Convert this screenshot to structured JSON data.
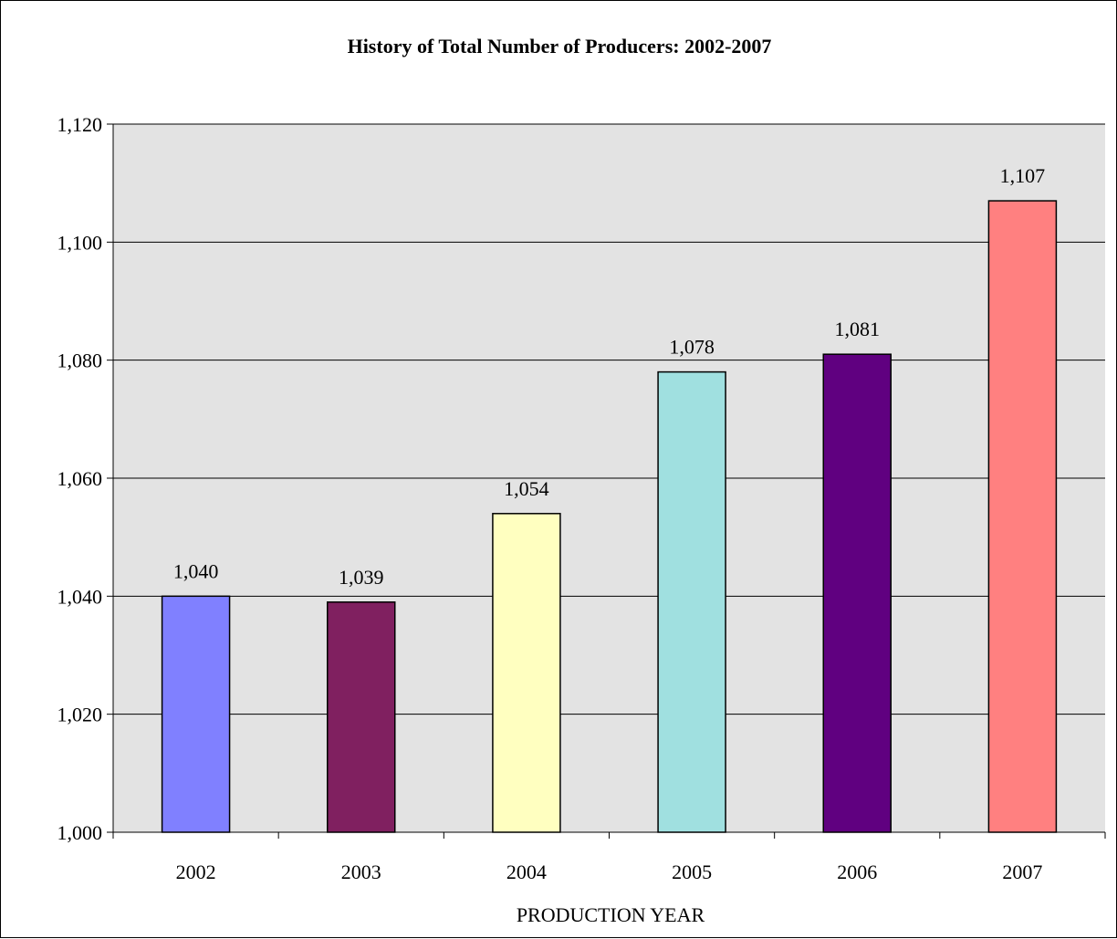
{
  "chart_data": {
    "type": "bar",
    "title": "History of Total Number of Producers: 2002-2007",
    "xlabel": "PRODUCTION YEAR",
    "ylabel": "",
    "categories": [
      "2002",
      "2003",
      "2004",
      "2005",
      "2006",
      "2007"
    ],
    "values": [
      1040,
      1039,
      1054,
      1078,
      1081,
      1107
    ],
    "data_labels": [
      "1,040",
      "1,039",
      "1,054",
      "1,078",
      "1,081",
      "1,107"
    ],
    "bar_colors": [
      "#8080ff",
      "#802060",
      "#ffffc0",
      "#a0e0e0",
      "#600080",
      "#ff8080"
    ],
    "ylim": [
      1000,
      1120
    ],
    "yticks": [
      1000,
      1020,
      1040,
      1060,
      1080,
      1100,
      1120
    ],
    "ytick_labels": [
      "1,000",
      "1,020",
      "1,040",
      "1,060",
      "1,080",
      "1,100",
      "1,120"
    ],
    "grid": true,
    "plot_background": "#e3e3e3",
    "gridline_color": "#000000"
  }
}
